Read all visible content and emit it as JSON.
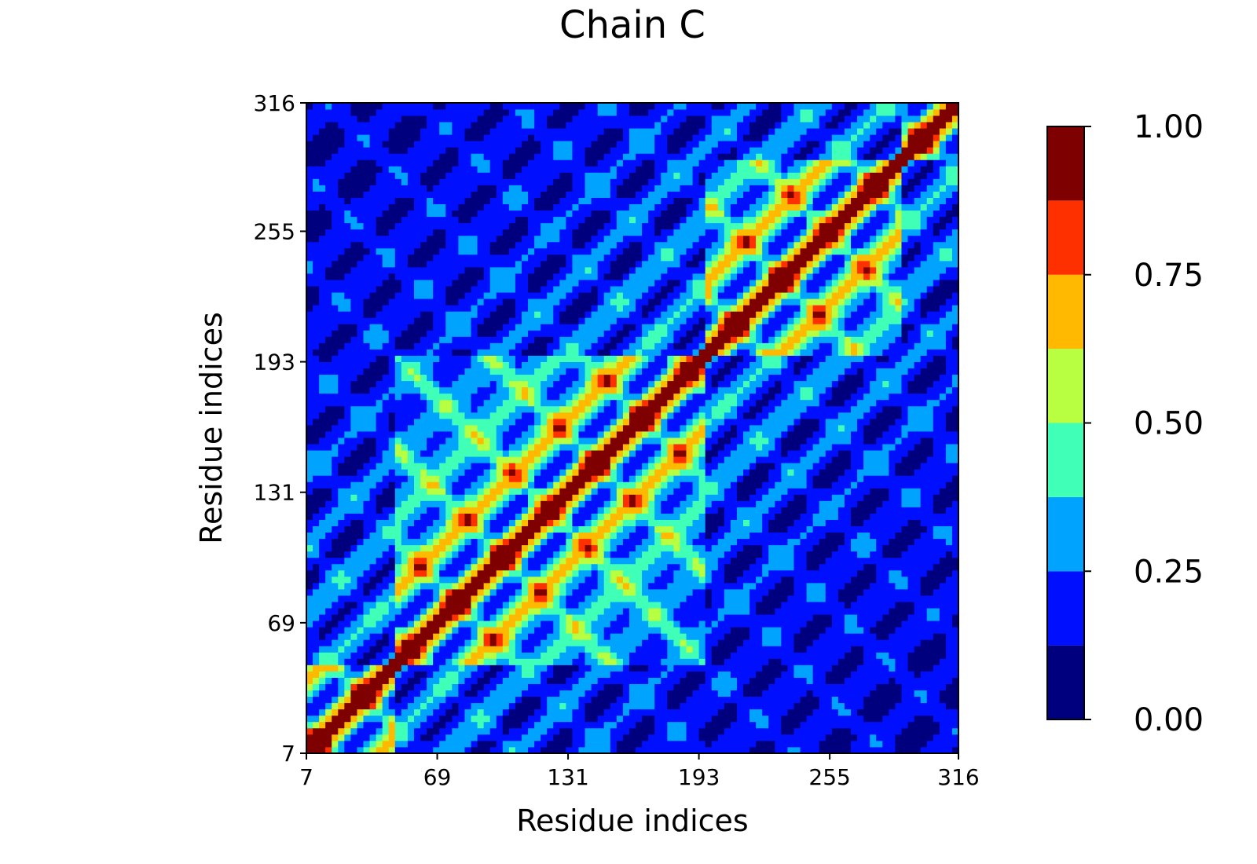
{
  "chart_data": {
    "type": "heatmap",
    "title": "Chain C",
    "xlabel": "Residue indices",
    "ylabel": "Residue indices",
    "xlim": [
      7,
      316
    ],
    "ylim": [
      7,
      316
    ],
    "x_ticks": [
      "7",
      "69",
      "131",
      "193",
      "255",
      "316"
    ],
    "y_ticks": [
      "7",
      "69",
      "131",
      "193",
      "255",
      "316"
    ],
    "grid": false,
    "colormap": "jet",
    "colorbar": {
      "range": [
        0,
        1
      ],
      "tick_labels": [
        "0.00",
        "0.25",
        "0.50",
        "0.75",
        "1.00"
      ],
      "levels": [
        {
          "from": 0.0,
          "to": 0.125,
          "color": "#00007f"
        },
        {
          "from": 0.125,
          "to": 0.25,
          "color": "#0010ff"
        },
        {
          "from": 0.25,
          "to": 0.375,
          "color": "#00a4ff"
        },
        {
          "from": 0.375,
          "to": 0.5,
          "color": "#40ffb7"
        },
        {
          "from": 0.5,
          "to": 0.625,
          "color": "#b7ff40"
        },
        {
          "from": 0.625,
          "to": 0.75,
          "color": "#ffb900"
        },
        {
          "from": 0.75,
          "to": 0.875,
          "color": "#ff3000"
        },
        {
          "from": 0.875,
          "to": 1.0,
          "color": "#7f0000"
        }
      ]
    },
    "domains": [
      {
        "from": 7,
        "to": 48
      },
      {
        "from": 48,
        "to": 193
      },
      {
        "from": 193,
        "to": 287
      },
      {
        "from": 287,
        "to": 316
      }
    ],
    "diagonal_value": 1.0
  }
}
